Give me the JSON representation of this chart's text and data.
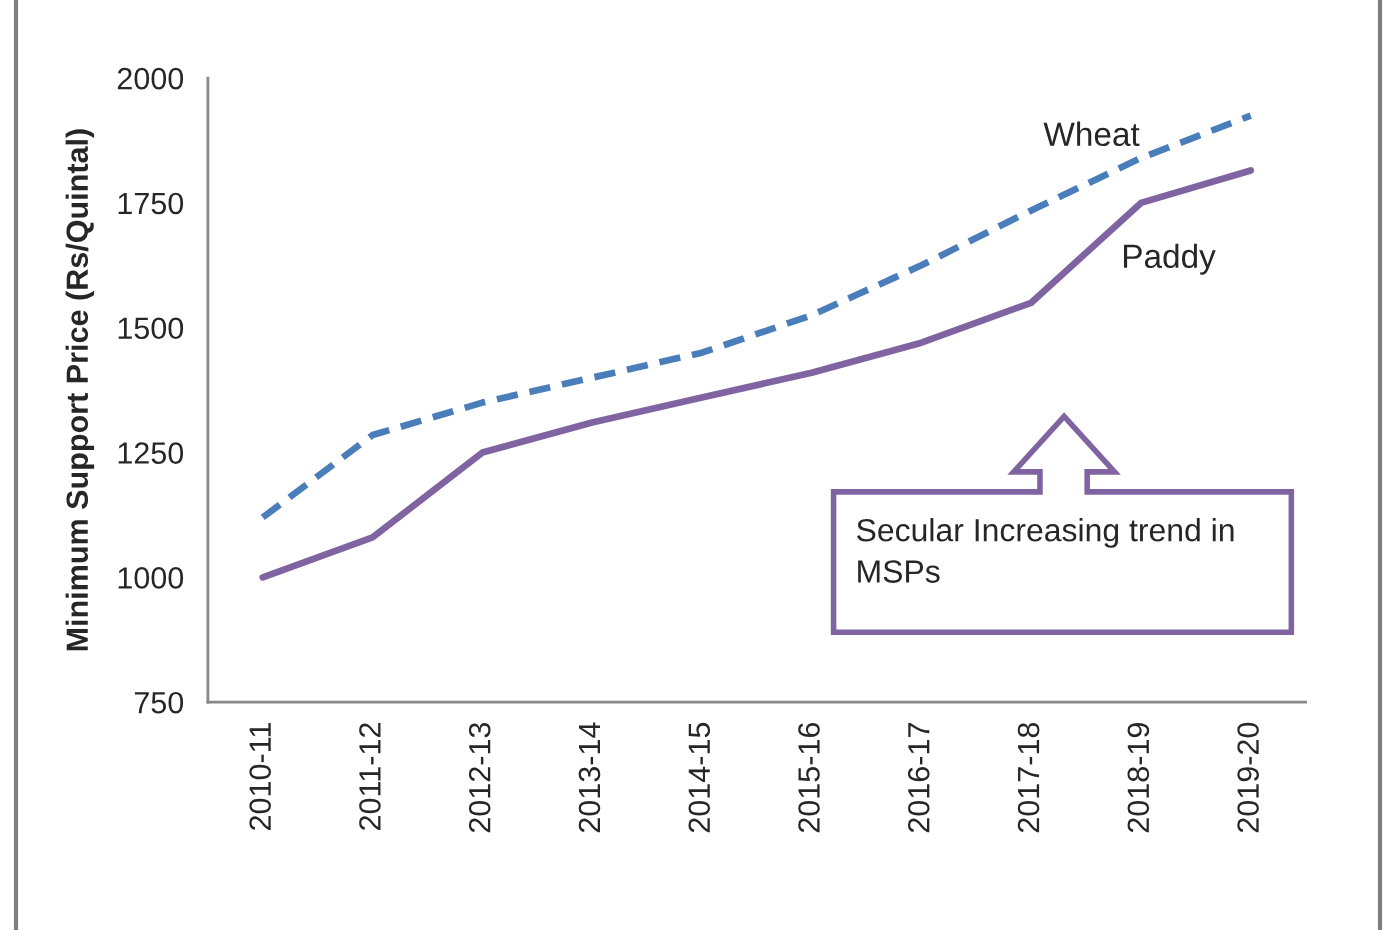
{
  "chart_data": {
    "type": "line",
    "ylabel": "Minimum Support Price (Rs/Quintal)",
    "categories": [
      "2010-11",
      "2011-12",
      "2012-13",
      "2013-14",
      "2014-15",
      "2015-16",
      "2016-17",
      "2017-18",
      "2018-19",
      "2019-20"
    ],
    "series": [
      {
        "name": "Wheat",
        "color": "#4a7ebb",
        "line_style": "dashed",
        "values": [
          1120,
          1285,
          1350,
          1400,
          1450,
          1525,
          1625,
          1735,
          1840,
          1925
        ]
      },
      {
        "name": "Paddy",
        "color": "#8064a2",
        "line_style": "solid",
        "values": [
          1000,
          1080,
          1250,
          1310,
          1360,
          1410,
          1470,
          1550,
          1750,
          1815
        ]
      }
    ],
    "ylim": [
      750,
      2000
    ],
    "yticks": [
      750,
      1000,
      1250,
      1500,
      1750,
      2000
    ],
    "grid": false,
    "legend": false,
    "marker": "none",
    "annotations": [
      "Secular Increasing trend in\nMSPs"
    ]
  }
}
